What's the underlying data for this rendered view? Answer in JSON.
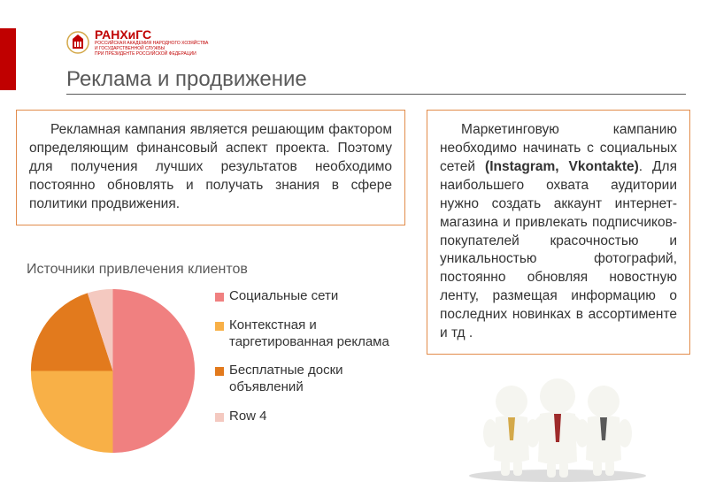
{
  "logo": {
    "main": "РАНХиГС",
    "sub1": "РОССИЙСКАЯ АКАДЕМИЯ НАРОДНОГО ХОЗЯЙСТВА",
    "sub2": "И ГОСУДАРСТВЕННОЙ СЛУЖБЫ",
    "sub3": "ПРИ ПРЕЗИДЕНТЕ РОССИЙСКОЙ ФЕДЕРАЦИИ",
    "emblem_color_outer": "#d4a94a",
    "emblem_color_inner": "#c00000"
  },
  "title": "Реклама и продвижение",
  "box_left_text": "Рекламная кампания является решающим фактором определяющим финансовый аспект проекта. Поэтому для получения лучших результатов необходимо постоянно обновлять и получать знания  в сфере политики продвижения.",
  "box_right_pre": "Маркетинговую кампанию необходимо начинать с социальных сетей ",
  "box_right_bold": "(Instagram, Vkontakte)",
  "box_right_post": ". Для наибольшего охвата аудитории нужно создать аккаунт интернет-магазина и привлекать подписчиков-покупателей красочностью и уникальностью фотографий, постоянно обновляя новостную ленту, размещая информацию о последних новинках в ассортименте и тд .",
  "chart": {
    "type": "pie",
    "title": "Источники привлечения клиентов",
    "title_fontsize": 16,
    "title_color": "#595959",
    "slices": [
      {
        "label": "Социальные сети",
        "value": 50,
        "color": "#f08080"
      },
      {
        "label": "Контекстная и таргетированная реклама",
        "value": 25,
        "color": "#f8b047"
      },
      {
        "label": "Бесплатные доски объявлений",
        "value": 20,
        "color": "#e27a1d"
      },
      {
        "label": "Row 4",
        "value": 5,
        "color": "#f4c9c0"
      }
    ],
    "radius": 95,
    "background": "#ffffff",
    "legend_fontsize": 15
  },
  "colors": {
    "accent_red": "#c00000",
    "border_orange": "#e28c4b",
    "text_gray": "#595959"
  },
  "people_figure": {
    "body_color": "#f5f5f0",
    "tie_colors": [
      "#d4a94a",
      "#9e2b2b",
      "#5a5a5a"
    ],
    "shadow": "#dcdcdc"
  }
}
